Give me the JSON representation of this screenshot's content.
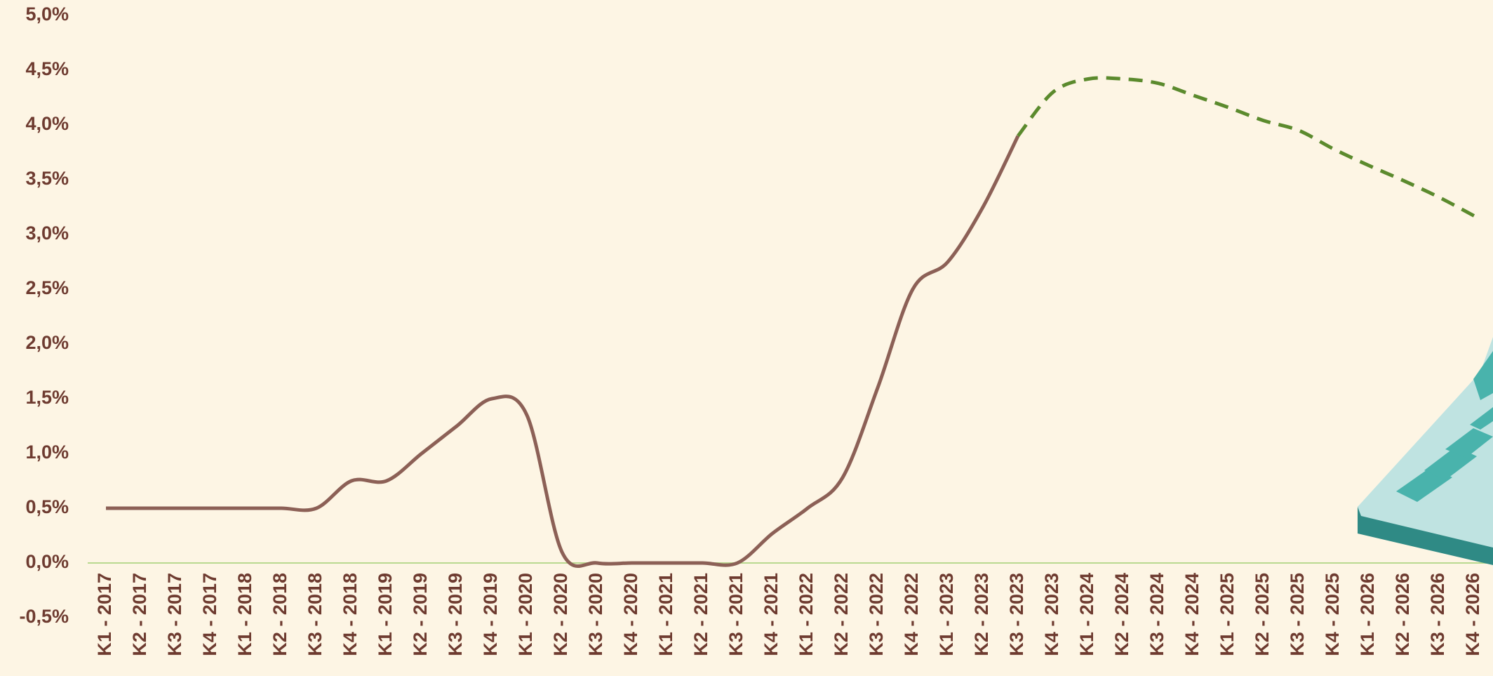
{
  "chart_data": {
    "type": "line",
    "categories": [
      "K1 - 2017",
      "K2 - 2017",
      "K3 - 2017",
      "K4 - 2017",
      "K1 - 2018",
      "K2 - 2018",
      "K3 - 2018",
      "K4 - 2018",
      "K1 - 2019",
      "K2 - 2019",
      "K3 - 2019",
      "K4 - 2019",
      "K1 - 2020",
      "K2 - 2020",
      "K3 - 2020",
      "K4 - 2020",
      "K1 - 2021",
      "K2 - 2021",
      "K3 - 2021",
      "K4 - 2021",
      "K1 - 2022",
      "K2 - 2022",
      "K3 - 2022",
      "K4 - 2022",
      "K1 - 2023",
      "K2 - 2023",
      "K3 - 2023",
      "K4 - 2023",
      "K1 - 2024",
      "K2 - 2024",
      "K3 - 2024",
      "K4 - 2024",
      "K1 - 2025",
      "K2 - 2025",
      "K3 - 2025",
      "K4 - 2025",
      "K1 - 2026",
      "K2 - 2026",
      "K3 - 2026",
      "K4 - 2026"
    ],
    "series": [
      {
        "color": "#8c6056",
        "dashed": false,
        "values": [
          0.5,
          0.5,
          0.5,
          0.5,
          0.5,
          0.5,
          0.5,
          0.75,
          0.75,
          1.0,
          1.25,
          1.5,
          1.35,
          0.1,
          0.0,
          0.0,
          0.0,
          0.0,
          0.0,
          0.27,
          0.5,
          0.78,
          1.6,
          2.5,
          2.75,
          3.25,
          3.9,
          null,
          null,
          null,
          null,
          null,
          null,
          null,
          null,
          null,
          null,
          null,
          null,
          null
        ]
      },
      {
        "color": "#5b8a2d",
        "dashed": true,
        "values": [
          null,
          null,
          null,
          null,
          null,
          null,
          null,
          null,
          null,
          null,
          null,
          null,
          null,
          null,
          null,
          null,
          null,
          null,
          null,
          null,
          null,
          null,
          null,
          null,
          null,
          null,
          3.9,
          4.3,
          4.42,
          4.42,
          4.38,
          4.27,
          4.16,
          4.04,
          3.95,
          3.78,
          3.63,
          3.49,
          3.34,
          3.17
        ]
      }
    ],
    "ylim": [
      -0.5,
      5.0
    ],
    "yticks": [
      {
        "value": -0.5,
        "label": "-0,5%"
      },
      {
        "value": 0,
        "label": "0,0%"
      },
      {
        "value": 0.5,
        "label": "0,5%"
      },
      {
        "value": 1.0,
        "label": "1,0%"
      },
      {
        "value": 1.5,
        "label": "1,5%"
      },
      {
        "value": 2.0,
        "label": "2,0%"
      },
      {
        "value": 2.5,
        "label": "2,5%"
      },
      {
        "value": 3.0,
        "label": "3,0%"
      },
      {
        "value": 3.5,
        "label": "3,5%"
      },
      {
        "value": 4.0,
        "label": "4,0%"
      },
      {
        "value": 4.5,
        "label": "4,5%"
      },
      {
        "value": 5.0,
        "label": "5,0%"
      }
    ],
    "zero_line_color": "#b9d98f"
  }
}
